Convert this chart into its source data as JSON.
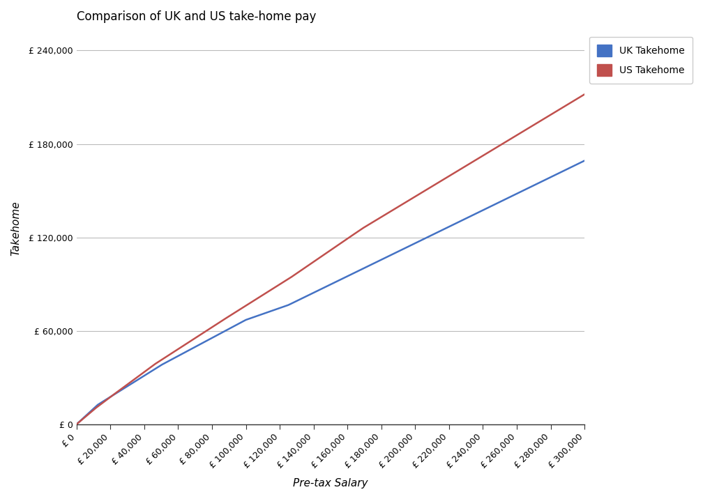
{
  "title": "Comparison of UK and US take-home pay",
  "xlabel": "Pre-tax Salary",
  "ylabel": "Takehome",
  "uk_color": "#4472C4",
  "us_color": "#C0504D",
  "legend_uk": "UK Takehome",
  "legend_us": "US Takehome",
  "background_color": "#FFFFFF",
  "grid_color": "#BBBBBB",
  "x_max": 300000,
  "y_min": 0,
  "y_max": 252000,
  "x_ticks": [
    0,
    20000,
    40000,
    60000,
    80000,
    100000,
    120000,
    140000,
    160000,
    180000,
    200000,
    220000,
    240000,
    260000,
    280000,
    300000
  ],
  "y_ticks": [
    0,
    60000,
    120000,
    180000,
    240000
  ]
}
